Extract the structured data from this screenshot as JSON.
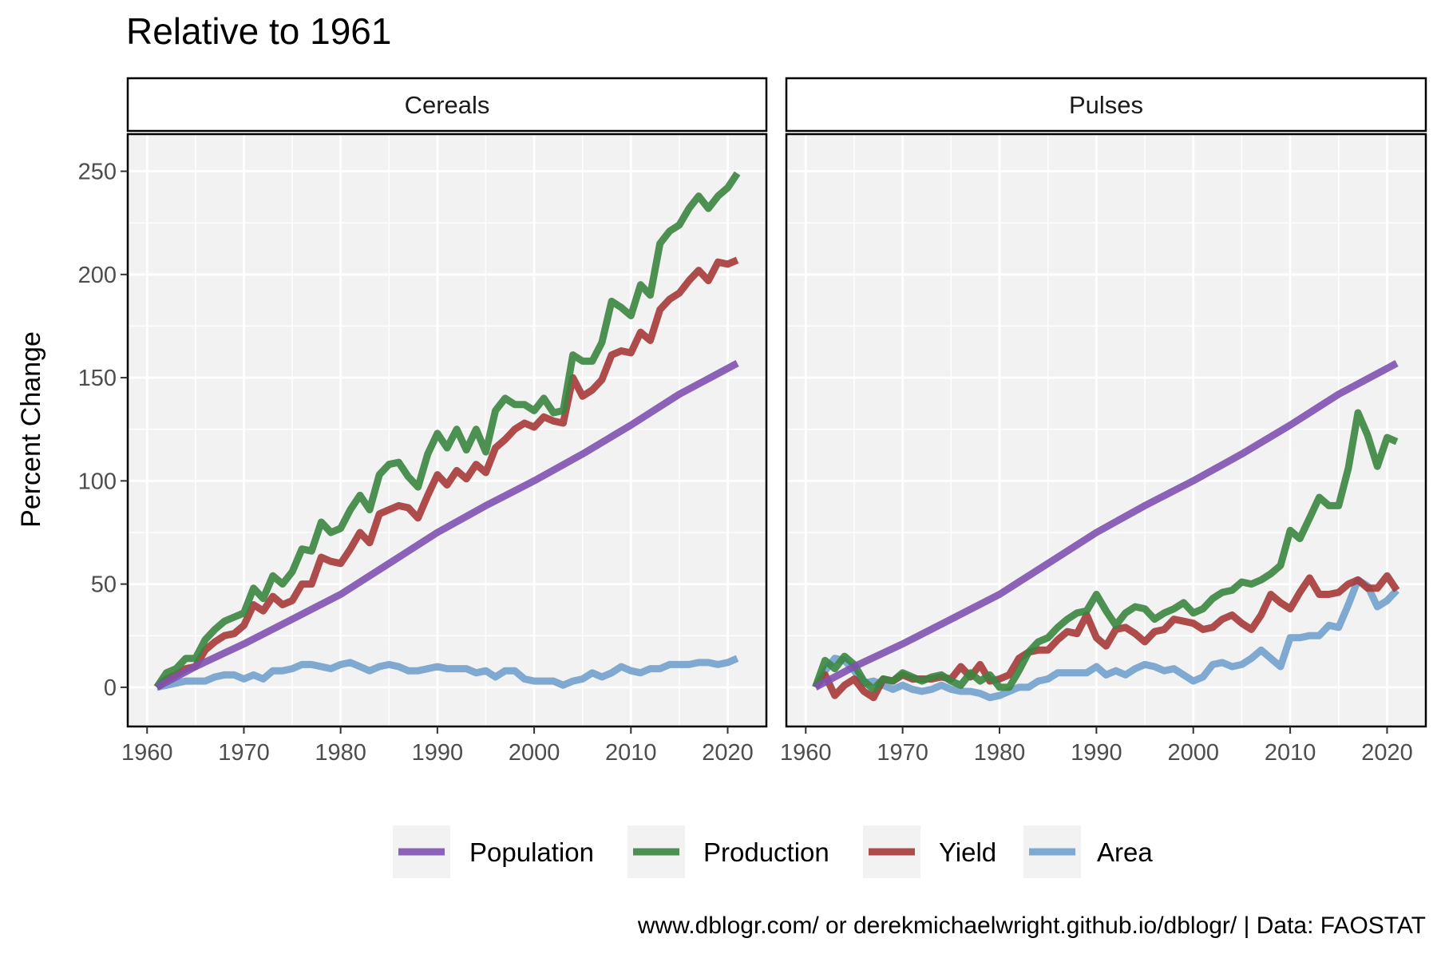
{
  "title": "Relative to 1961",
  "caption": "www.dblogr.com/ or derekmichaelwright.github.io/dblogr/ | Data: FAOSTAT",
  "chart_data": {
    "type": "line",
    "ylabel": "Percent Change",
    "xlabel": "",
    "xlim": [
      1958,
      2024
    ],
    "ylim": [
      -19,
      268
    ],
    "x_ticks": [
      1960,
      1970,
      1980,
      1990,
      2000,
      2010,
      2020
    ],
    "y_ticks": [
      0,
      50,
      100,
      150,
      200,
      250
    ],
    "grid": true,
    "legend_position": "bottom",
    "colors": {
      "Population": "#7f52b0",
      "Production": "#3a8540",
      "Yield": "#a63a3a",
      "Area": "#72a1cc"
    },
    "legend": [
      "Population",
      "Production",
      "Yield",
      "Area"
    ],
    "panels": [
      {
        "name": "Cereals",
        "series": [
          {
            "name": "Population",
            "x": [
              1961,
              1965,
              1970,
              1975,
              1980,
              1985,
              1990,
              1995,
              2000,
              2005,
              2010,
              2015,
              2021
            ],
            "y": [
              0,
              10,
              21,
              33,
              45,
              60,
              75,
              88,
              100,
              113,
              127,
              142,
              157
            ]
          },
          {
            "name": "Production",
            "x": [
              1961,
              1962,
              1963,
              1964,
              1965,
              1966,
              1967,
              1968,
              1969,
              1970,
              1971,
              1972,
              1973,
              1974,
              1975,
              1976,
              1977,
              1978,
              1979,
              1980,
              1981,
              1982,
              1983,
              1984,
              1985,
              1986,
              1987,
              1988,
              1989,
              1990,
              1991,
              1992,
              1993,
              1994,
              1995,
              1996,
              1997,
              1998,
              1999,
              2000,
              2001,
              2002,
              2003,
              2004,
              2005,
              2006,
              2007,
              2008,
              2009,
              2010,
              2011,
              2012,
              2013,
              2014,
              2015,
              2016,
              2017,
              2018,
              2019,
              2020,
              2021
            ],
            "y": [
              0,
              7,
              9,
              14,
              14,
              23,
              28,
              32,
              34,
              36,
              48,
              43,
              54,
              50,
              56,
              67,
              66,
              80,
              75,
              77,
              86,
              93,
              86,
              103,
              108,
              109,
              102,
              97,
              113,
              123,
              116,
              125,
              115,
              125,
              114,
              134,
              140,
              137,
              137,
              134,
              140,
              133,
              134,
              161,
              158,
              158,
              167,
              187,
              184,
              180,
              195,
              190,
              215,
              221,
              224,
              232,
              238,
              232,
              238,
              242,
              249
            ]
          },
          {
            "name": "Yield",
            "x": [
              1961,
              1962,
              1963,
              1964,
              1965,
              1966,
              1967,
              1968,
              1969,
              1970,
              1971,
              1972,
              1973,
              1974,
              1975,
              1976,
              1977,
              1978,
              1979,
              1980,
              1981,
              1982,
              1983,
              1984,
              1985,
              1986,
              1987,
              1988,
              1989,
              1990,
              1991,
              1992,
              1993,
              1994,
              1995,
              1996,
              1997,
              1998,
              1999,
              2000,
              2001,
              2002,
              2003,
              2004,
              2005,
              2006,
              2007,
              2008,
              2009,
              2010,
              2011,
              2012,
              2013,
              2014,
              2015,
              2016,
              2017,
              2018,
              2019,
              2020,
              2021
            ],
            "y": [
              0,
              4,
              6,
              9,
              10,
              18,
              22,
              25,
              26,
              30,
              40,
              37,
              44,
              40,
              42,
              50,
              50,
              63,
              61,
              60,
              67,
              75,
              70,
              84,
              86,
              88,
              87,
              82,
              93,
              103,
              98,
              105,
              101,
              108,
              104,
              116,
              120,
              125,
              128,
              126,
              131,
              129,
              128,
              150,
              141,
              144,
              149,
              161,
              163,
              162,
              172,
              168,
              183,
              188,
              191,
              197,
              202,
              197,
              206,
              205,
              207
            ]
          },
          {
            "name": "Area",
            "x": [
              1961,
              1962,
              1963,
              1964,
              1965,
              1966,
              1967,
              1968,
              1969,
              1970,
              1971,
              1972,
              1973,
              1974,
              1975,
              1976,
              1977,
              1978,
              1979,
              1980,
              1981,
              1982,
              1983,
              1984,
              1985,
              1986,
              1987,
              1988,
              1989,
              1990,
              1991,
              1992,
              1993,
              1994,
              1995,
              1996,
              1997,
              1998,
              1999,
              2000,
              2001,
              2002,
              2003,
              2004,
              2005,
              2006,
              2007,
              2008,
              2009,
              2010,
              2011,
              2012,
              2013,
              2014,
              2015,
              2016,
              2017,
              2018,
              2019,
              2020,
              2021
            ],
            "y": [
              0,
              1,
              2,
              3,
              3,
              3,
              5,
              6,
              6,
              4,
              6,
              4,
              8,
              8,
              9,
              11,
              11,
              10,
              9,
              11,
              12,
              10,
              8,
              10,
              11,
              10,
              8,
              8,
              9,
              10,
              9,
              9,
              9,
              7,
              8,
              5,
              8,
              8,
              4,
              3,
              3,
              3,
              1,
              3,
              4,
              7,
              5,
              7,
              10,
              8,
              7,
              9,
              9,
              11,
              11,
              11,
              12,
              12,
              11,
              12,
              14
            ]
          }
        ]
      },
      {
        "name": "Pulses",
        "series": [
          {
            "name": "Population",
            "x": [
              1961,
              1965,
              1970,
              1975,
              1980,
              1985,
              1990,
              1995,
              2000,
              2005,
              2010,
              2015,
              2021
            ],
            "y": [
              0,
              10,
              21,
              33,
              45,
              60,
              75,
              88,
              100,
              113,
              127,
              142,
              157
            ]
          },
          {
            "name": "Production",
            "x": [
              1961,
              1962,
              1963,
              1964,
              1965,
              1966,
              1967,
              1968,
              1969,
              1970,
              1971,
              1972,
              1973,
              1974,
              1975,
              1976,
              1977,
              1978,
              1979,
              1980,
              1981,
              1982,
              1983,
              1984,
              1985,
              1986,
              1987,
              1988,
              1989,
              1990,
              1991,
              1992,
              1993,
              1994,
              1995,
              1996,
              1997,
              1998,
              1999,
              2000,
              2001,
              2002,
              2003,
              2004,
              2005,
              2006,
              2007,
              2008,
              2009,
              2010,
              2011,
              2012,
              2013,
              2014,
              2015,
              2016,
              2017,
              2018,
              2019,
              2020,
              2021
            ],
            "y": [
              0,
              13,
              9,
              15,
              11,
              3,
              -1,
              4,
              3,
              7,
              5,
              3,
              5,
              6,
              3,
              1,
              7,
              3,
              6,
              0,
              0,
              8,
              17,
              22,
              24,
              29,
              33,
              36,
              37,
              45,
              37,
              30,
              36,
              39,
              38,
              33,
              36,
              38,
              41,
              36,
              38,
              43,
              46,
              47,
              51,
              50,
              52,
              55,
              59,
              76,
              72,
              82,
              92,
              88,
              88,
              106,
              133,
              122,
              107,
              121,
              119
            ]
          },
          {
            "name": "Yield",
            "x": [
              1961,
              1962,
              1963,
              1964,
              1965,
              1966,
              1967,
              1968,
              1969,
              1970,
              1971,
              1972,
              1973,
              1974,
              1975,
              1976,
              1977,
              1978,
              1979,
              1980,
              1981,
              1982,
              1983,
              1984,
              1985,
              1986,
              1987,
              1988,
              1989,
              1990,
              1991,
              1992,
              1993,
              1994,
              1995,
              1996,
              1997,
              1998,
              1999,
              2000,
              2001,
              2002,
              2003,
              2004,
              2005,
              2006,
              2007,
              2008,
              2009,
              2010,
              2011,
              2012,
              2013,
              2014,
              2015,
              2016,
              2017,
              2018,
              2019,
              2020,
              2021
            ],
            "y": [
              0,
              6,
              -4,
              1,
              4,
              -2,
              -5,
              4,
              3,
              6,
              4,
              4,
              4,
              5,
              4,
              10,
              5,
              11,
              3,
              4,
              6,
              14,
              17,
              18,
              18,
              23,
              27,
              26,
              35,
              24,
              20,
              28,
              29,
              26,
              22,
              27,
              28,
              33,
              32,
              31,
              28,
              29,
              33,
              35,
              31,
              28,
              35,
              45,
              41,
              38,
              46,
              53,
              45,
              45,
              46,
              50,
              52,
              48,
              48,
              54,
              47
            ]
          },
          {
            "name": "Area",
            "x": [
              1961,
              1962,
              1963,
              1964,
              1965,
              1966,
              1967,
              1968,
              1969,
              1970,
              1971,
              1972,
              1973,
              1974,
              1975,
              1976,
              1977,
              1978,
              1979,
              1980,
              1981,
              1982,
              1983,
              1984,
              1985,
              1986,
              1987,
              1988,
              1989,
              1990,
              1991,
              1992,
              1993,
              1994,
              1995,
              1996,
              1997,
              1998,
              1999,
              2000,
              2001,
              2002,
              2003,
              2004,
              2005,
              2006,
              2007,
              2008,
              2009,
              2010,
              2011,
              2012,
              2013,
              2014,
              2015,
              2016,
              2017,
              2018,
              2019,
              2020,
              2021
            ],
            "y": [
              0,
              8,
              14,
              13,
              8,
              2,
              3,
              1,
              -1,
              1,
              -1,
              -2,
              -1,
              1,
              -1,
              -2,
              -2,
              -3,
              -5,
              -4,
              -2,
              0,
              0,
              3,
              4,
              7,
              7,
              7,
              7,
              10,
              6,
              8,
              6,
              9,
              11,
              10,
              8,
              9,
              6,
              3,
              5,
              11,
              12,
              10,
              11,
              14,
              18,
              14,
              10,
              24,
              24,
              25,
              25,
              30,
              29,
              40,
              52,
              49,
              39,
              42,
              47
            ]
          }
        ]
      }
    ]
  }
}
